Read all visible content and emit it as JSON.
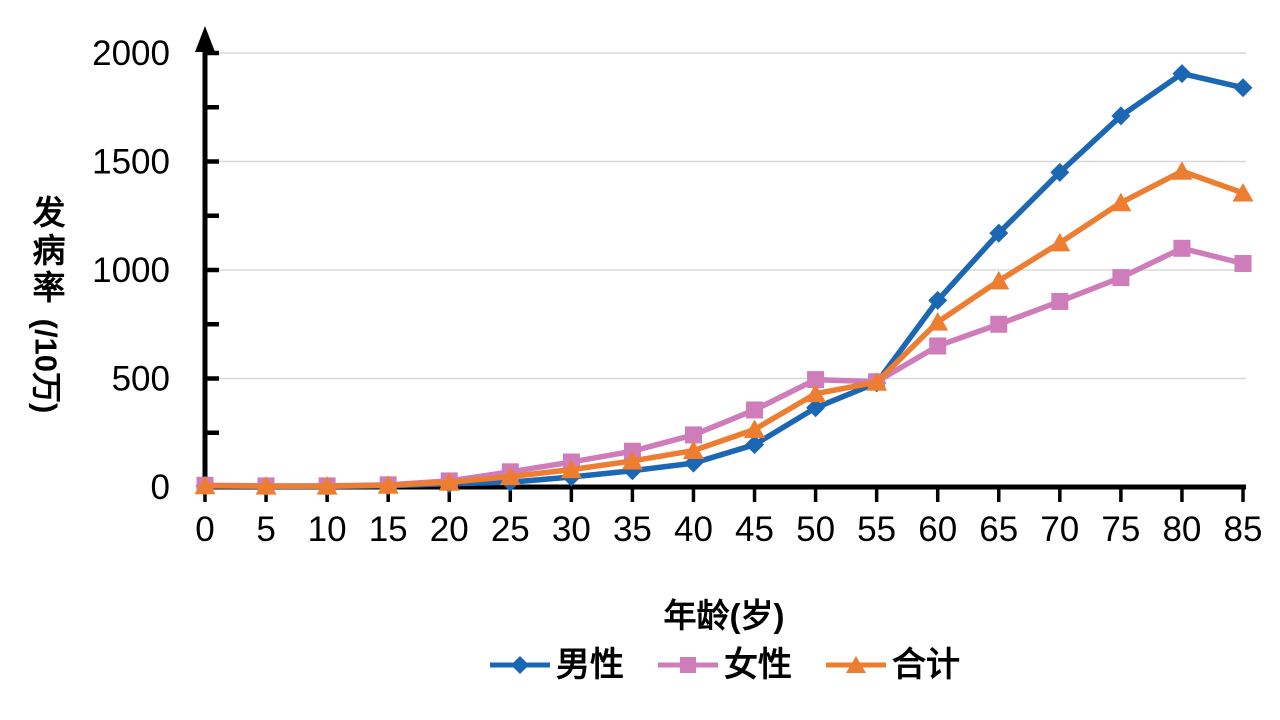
{
  "chart_data": {
    "type": "line",
    "title": "",
    "xlabel": "年龄(岁)",
    "ylabel": "发病率(/10万)",
    "ylabel_upright": "发病率",
    "ylabel_rotated": "(/10万)",
    "x": [
      0,
      5,
      10,
      15,
      20,
      25,
      30,
      35,
      40,
      45,
      50,
      55,
      60,
      65,
      70,
      75,
      80,
      85
    ],
    "x_tick_labels": [
      "0",
      "5",
      "10",
      "15",
      "20",
      "25",
      "30",
      "35",
      "40",
      "45",
      "50",
      "55",
      "60",
      "65",
      "70",
      "75",
      "80",
      "85"
    ],
    "y_ticks": [
      0,
      500,
      1000,
      1500,
      2000
    ],
    "y_tick_labels": [
      "0",
      "500",
      "1000",
      "1500",
      "2000"
    ],
    "y_minor_step": 250,
    "ylim": [
      0,
      2000
    ],
    "grid": "horizontal-major",
    "legend_position": "bottom-center",
    "series": [
      {
        "id": "male",
        "name": "男性",
        "marker": "diamond",
        "color": "#1b67b3",
        "values": [
          5,
          3,
          3,
          6,
          15,
          22,
          46,
          75,
          110,
          195,
          365,
          480,
          860,
          1170,
          1450,
          1710,
          1905,
          1840
        ]
      },
      {
        "id": "female",
        "name": "女性",
        "marker": "square",
        "color": "#ce7cba",
        "values": [
          8,
          5,
          5,
          10,
          28,
          70,
          115,
          165,
          240,
          355,
          495,
          485,
          650,
          750,
          855,
          965,
          1100,
          1030
        ]
      },
      {
        "id": "total",
        "name": "合计",
        "marker": "triangle",
        "color": "#ed7d31",
        "values": [
          6,
          4,
          4,
          8,
          22,
          48,
          80,
          120,
          168,
          265,
          430,
          483,
          760,
          950,
          1125,
          1310,
          1455,
          1355
        ]
      }
    ],
    "colors": {
      "axis": "#000000",
      "grid": "#d8d8d8",
      "background": "#ffffff"
    }
  }
}
